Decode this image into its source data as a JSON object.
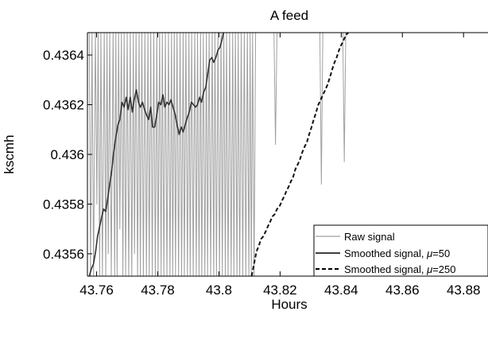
{
  "chart_data": {
    "type": "line",
    "title": "A feed",
    "xlabel": "Hours",
    "ylabel": "kscmh",
    "xlim": [
      43.757,
      43.888
    ],
    "ylim": [
      0.43551,
      0.43649
    ],
    "xticks": [
      43.76,
      43.78,
      43.8,
      43.82,
      43.84,
      43.86,
      43.88
    ],
    "xtick_labels": [
      "43.76",
      "43.78",
      "43.8",
      "43.82",
      "43.84",
      "43.86",
      "43.88"
    ],
    "yticks": [
      0.4356,
      0.4358,
      0.436,
      0.4362,
      0.4364
    ],
    "ytick_labels": [
      "0.4356",
      "0.4358",
      "0.436",
      "0.4362",
      "0.4364"
    ],
    "grid": false,
    "legend_position": "bottom-right",
    "series": [
      {
        "name": "Raw signal",
        "color": "#a0a0a0",
        "style": "solid",
        "x": [
          43.7576,
          43.758,
          43.7585,
          43.759,
          43.7596,
          43.7601,
          43.7605,
          43.761,
          43.7614,
          43.7619,
          43.7625,
          43.763,
          43.7634,
          43.7638,
          43.7643,
          43.7648,
          43.7654,
          43.7659,
          43.7663,
          43.7667,
          43.7672,
          43.7676,
          43.7681,
          43.7686,
          43.769,
          43.7695,
          43.77,
          43.7705,
          43.771,
          43.7715,
          43.772,
          43.7724,
          43.7729,
          43.7734,
          43.7739,
          43.7743,
          43.7748,
          43.7753,
          43.7758,
          43.7763,
          43.7768,
          43.7772,
          43.7777,
          43.7782,
          43.7787,
          43.7792,
          43.7797,
          43.7801,
          43.7806,
          43.7811,
          43.7815,
          43.782,
          43.7825,
          43.783,
          43.7835,
          43.784,
          43.7845,
          43.7849,
          43.7854,
          43.7858,
          43.7863,
          43.7868,
          43.7873,
          43.7878,
          43.7883,
          43.7887,
          43.7892,
          43.7897,
          43.7902,
          43.7906,
          43.7911,
          43.7916,
          43.7921,
          43.7926,
          43.793,
          43.7935,
          43.794,
          43.7944,
          43.7949,
          43.7954,
          43.7959,
          43.7963,
          43.7968,
          43.7973,
          43.7978,
          43.7983,
          43.7987,
          43.7992,
          43.7997,
          43.8002,
          43.8007,
          43.8011,
          43.8016,
          43.8021,
          43.8025,
          43.803,
          43.8035,
          43.804,
          43.8045,
          43.8049,
          43.8054,
          43.8059,
          43.8063,
          43.8068,
          43.8073,
          43.8078,
          43.8083,
          43.8088,
          43.8093,
          43.8098,
          43.8102,
          43.8106,
          43.811,
          43.8115,
          43.812,
          43.8125,
          43.813,
          43.8135,
          43.814,
          43.8145,
          43.815,
          43.8155,
          43.816,
          43.8165,
          43.817,
          43.8175,
          43.818,
          43.8185,
          43.819,
          43.8195,
          43.82,
          43.8205,
          43.821,
          43.8215,
          43.822,
          43.8225,
          43.823,
          43.8235,
          43.824,
          43.8245,
          43.825,
          43.8255,
          43.826,
          43.8265,
          43.827,
          43.8275,
          43.828,
          43.8285,
          43.829,
          43.8295,
          43.83,
          43.8305,
          43.831,
          43.8315,
          43.832,
          43.8325,
          43.833,
          43.8335,
          43.834,
          43.8345,
          43.835,
          43.8355,
          43.836,
          43.8365,
          43.837,
          43.8375,
          43.838,
          43.8385,
          43.839,
          43.8395,
          43.84,
          43.8405,
          43.841,
          43.8415,
          43.842
        ],
        "y": [
          0.4365,
          0.4355,
          0.4365,
          0.4355,
          0.4365,
          0.4358,
          0.4365,
          0.4355,
          0.4365,
          0.4355,
          0.4365,
          0.4355,
          0.4365,
          0.4356,
          0.4365,
          0.4355,
          0.4365,
          0.4355,
          0.4365,
          0.4355,
          0.4365,
          0.4357,
          0.4365,
          0.4355,
          0.4365,
          0.4355,
          0.4365,
          0.4355,
          0.4365,
          0.4355,
          0.4365,
          0.4356,
          0.4365,
          0.4355,
          0.4365,
          0.4355,
          0.4365,
          0.4355,
          0.4365,
          0.4355,
          0.4365,
          0.4355,
          0.4365,
          0.4355,
          0.4365,
          0.4355,
          0.4365,
          0.4355,
          0.4365,
          0.4355,
          0.4365,
          0.4355,
          0.4365,
          0.4355,
          0.4365,
          0.4355,
          0.4365,
          0.4355,
          0.4365,
          0.4355,
          0.4365,
          0.4355,
          0.4365,
          0.4355,
          0.4365,
          0.4355,
          0.4365,
          0.4355,
          0.4365,
          0.4355,
          0.4365,
          0.4355,
          0.4365,
          0.4355,
          0.4365,
          0.4355,
          0.4365,
          0.4355,
          0.4365,
          0.4355,
          0.4365,
          0.4355,
          0.4365,
          0.4355,
          0.4365,
          0.4355,
          0.4365,
          0.4355,
          0.4365,
          0.4355,
          0.4365,
          0.4355,
          0.4365,
          0.4355,
          0.4365,
          0.4355,
          0.4365,
          0.4355,
          0.4365,
          0.4355,
          0.4365,
          0.4355,
          0.4365,
          0.4355,
          0.4365,
          0.4355,
          0.4365,
          0.4355,
          0.4365,
          0.4355,
          0.4365,
          0.4355,
          0.4365,
          0.4355,
          0.4365,
          0.4365,
          0.4365,
          0.4365,
          0.4365,
          0.4365,
          0.4365,
          0.4365,
          0.4365,
          0.4365,
          0.4365,
          0.4365,
          0.4365,
          0.43604,
          0.4365,
          0.4365,
          0.4365,
          0.4365,
          0.4365,
          0.4365,
          0.4365,
          0.4365,
          0.4365,
          0.4365,
          0.4365,
          0.4365,
          0.4365,
          0.4365,
          0.4365,
          0.4365,
          0.4365,
          0.4365,
          0.4365,
          0.4365,
          0.4365,
          0.4365,
          0.4365,
          0.4365,
          0.4365,
          0.4365,
          0.4365,
          0.4365,
          0.4365,
          0.43588,
          0.4365,
          0.4365,
          0.4365,
          0.4365,
          0.4365,
          0.4365,
          0.4365,
          0.4365,
          0.4365,
          0.4365,
          0.4365,
          0.4365,
          0.4365,
          0.4365,
          0.43597,
          0.4365,
          0.4365
        ]
      },
      {
        "name": "Smoothed signal, μ=50",
        "color": "#333333",
        "style": "solid",
        "x": [
          43.7576,
          43.7583,
          43.759,
          43.7597,
          43.7603,
          43.761,
          43.7617,
          43.7623,
          43.763,
          43.7636,
          43.7643,
          43.765,
          43.7656,
          43.7663,
          43.767,
          43.7676,
          43.7683,
          43.769,
          43.7697,
          43.7703,
          43.771,
          43.7717,
          43.7723,
          43.773,
          43.7737,
          43.7743,
          43.775,
          43.7757,
          43.7763,
          43.777,
          43.7777,
          43.7783,
          43.779,
          43.7797,
          43.7803,
          43.781,
          43.7817,
          43.7823,
          43.783,
          43.7837,
          43.7843,
          43.785,
          43.7857,
          43.7863,
          43.787,
          43.7877,
          43.7883,
          43.789,
          43.7897,
          43.7903,
          43.791,
          43.7917,
          43.7923,
          43.793,
          43.7937,
          43.7943,
          43.795,
          43.7957,
          43.7963,
          43.797,
          43.7977,
          43.7983,
          43.799,
          43.7997,
          43.8003,
          43.801,
          43.8015
        ],
        "y": [
          0.43551,
          0.43554,
          0.43556,
          0.43561,
          0.43567,
          0.43571,
          0.43575,
          0.43578,
          0.43577,
          0.43582,
          0.43588,
          0.43594,
          0.43601,
          0.43607,
          0.43612,
          0.43614,
          0.43621,
          0.43619,
          0.43623,
          0.43618,
          0.43623,
          0.43617,
          0.43622,
          0.43626,
          0.43621,
          0.43619,
          0.43621,
          0.43618,
          0.43616,
          0.43614,
          0.43619,
          0.43611,
          0.43611,
          0.43616,
          0.43621,
          0.4362,
          0.43624,
          0.43619,
          0.43621,
          0.4362,
          0.43622,
          0.43619,
          0.43616,
          0.43612,
          0.43608,
          0.43611,
          0.43609,
          0.43612,
          0.43615,
          0.43617,
          0.43621,
          0.4362,
          0.43619,
          0.4362,
          0.43623,
          0.43621,
          0.43625,
          0.43627,
          0.43632,
          0.43638,
          0.43639,
          0.43637,
          0.43639,
          0.43642,
          0.43643,
          0.43646,
          0.43649
        ]
      },
      {
        "name": "Smoothed signal, μ=250",
        "color": "#111111",
        "style": "dashed",
        "x": [
          43.8107,
          43.8115,
          43.8123,
          43.813,
          43.8138,
          43.8145,
          43.8153,
          43.816,
          43.8168,
          43.8175,
          43.8183,
          43.819,
          43.8198,
          43.8205,
          43.8213,
          43.822,
          43.8228,
          43.8235,
          43.8243,
          43.825,
          43.8258,
          43.8265,
          43.8273,
          43.828,
          43.8288,
          43.8295,
          43.8303,
          43.831,
          43.8318,
          43.8325,
          43.8333,
          43.834,
          43.8348,
          43.8355,
          43.8363,
          43.837,
          43.8378,
          43.8385,
          43.8393,
          43.84,
          43.8408,
          43.8415,
          43.8423
        ],
        "y": [
          0.43551,
          0.43556,
          0.43561,
          0.43563,
          0.43566,
          0.43567,
          0.43569,
          0.43571,
          0.43573,
          0.43575,
          0.43576,
          0.43578,
          0.43579,
          0.43581,
          0.43583,
          0.43585,
          0.43587,
          0.43589,
          0.43591,
          0.43594,
          0.43596,
          0.43598,
          0.43601,
          0.43603,
          0.43605,
          0.43608,
          0.43611,
          0.43614,
          0.43617,
          0.4362,
          0.43622,
          0.43624,
          0.43626,
          0.43628,
          0.43631,
          0.43634,
          0.43637,
          0.43639,
          0.43642,
          0.43644,
          0.43646,
          0.43648,
          0.43649
        ]
      }
    ],
    "legend": {
      "entries": [
        {
          "label": "Raw signal",
          "style": "solid",
          "color": "#a0a0a0"
        },
        {
          "label": "Smoothed signal, ",
          "mu": "μ",
          "suffix": "=50",
          "style": "solid",
          "color": "#000000"
        },
        {
          "label": "Smoothed signal, ",
          "mu": "μ",
          "suffix": "=250",
          "style": "dashed",
          "color": "#000000"
        }
      ]
    }
  }
}
